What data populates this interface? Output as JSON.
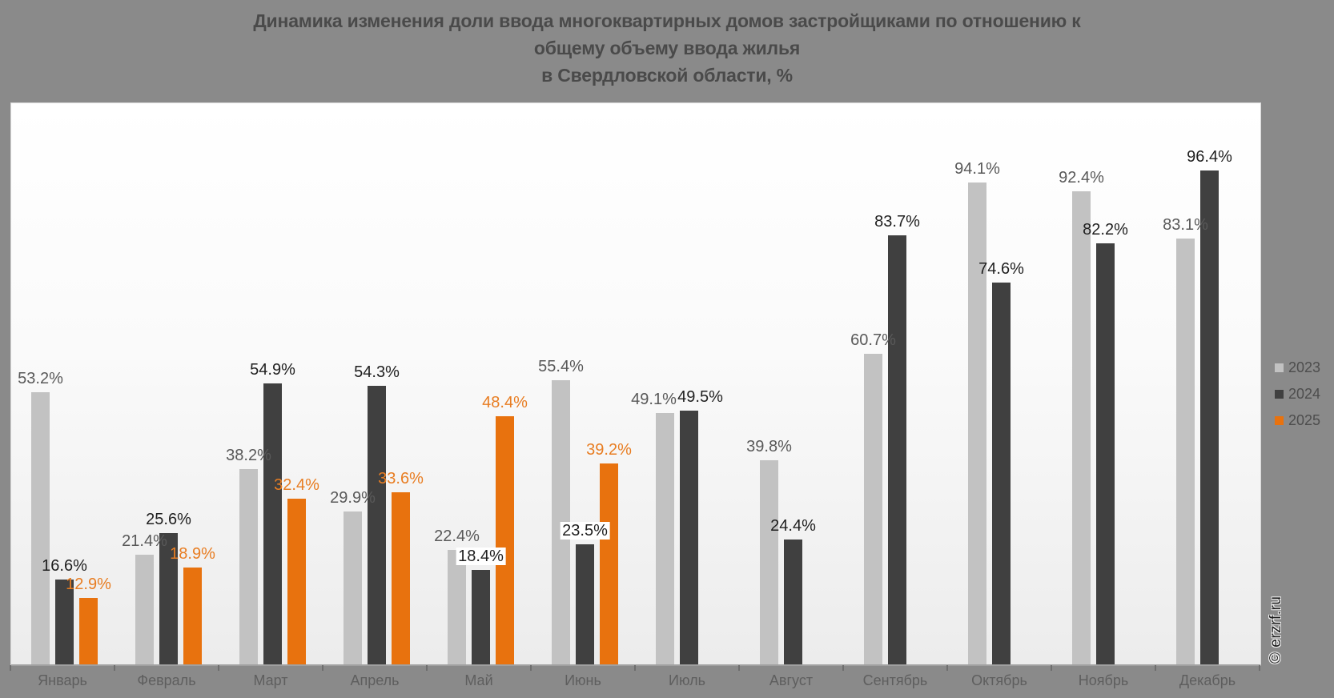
{
  "page": {
    "background_color": "#8a8a8a",
    "plot_background_top": "#ffffff",
    "plot_background_bottom": "#ececec",
    "axis_line_color": "#a0a0a0",
    "tick_color": "#6e6e6e"
  },
  "watermark": "© erzrf.ru",
  "chart_data": {
    "type": "bar",
    "title": "Динамика изменения доли ввода многоквартирных домов застройщиками по отношению к\nобщему объему ввода жилья\nв Свердловской области, %",
    "unit": "%",
    "ylim": [
      0,
      100
    ],
    "grid": false,
    "legend_position": "right",
    "categories": [
      "Январь",
      "Февраль",
      "Март",
      "Апрель",
      "Май",
      "Июнь",
      "Июль",
      "Август",
      "Сентябрь",
      "Октябрь",
      "Ноябрь",
      "Декабрь"
    ],
    "series": [
      {
        "name": "2023",
        "color": "#c2c2c2",
        "label_color": "#595959",
        "values": [
          53.2,
          21.4,
          38.2,
          29.9,
          22.4,
          55.4,
          49.1,
          39.8,
          60.7,
          94.1,
          92.4,
          83.1
        ]
      },
      {
        "name": "2024",
        "color": "#404040",
        "label_color": "#1f1f1f",
        "values": [
          16.6,
          25.6,
          54.9,
          54.3,
          18.4,
          23.5,
          49.5,
          24.4,
          83.7,
          74.6,
          82.2,
          96.4
        ]
      },
      {
        "name": "2025",
        "color": "#e8720e",
        "label_color": "#e87d22",
        "values": [
          12.9,
          18.9,
          32.4,
          33.6,
          48.4,
          39.2,
          null,
          null,
          null,
          null,
          null,
          null
        ]
      }
    ],
    "label_overrides": [
      {
        "series": "2024",
        "category": "Май",
        "background": "#ffffff"
      },
      {
        "series": "2024",
        "category": "Июнь",
        "background": "#ffffff"
      },
      {
        "series": "2023",
        "category": "Июль",
        "dx": -14
      },
      {
        "series": "2024",
        "category": "Июль",
        "dx": 14
      }
    ]
  }
}
